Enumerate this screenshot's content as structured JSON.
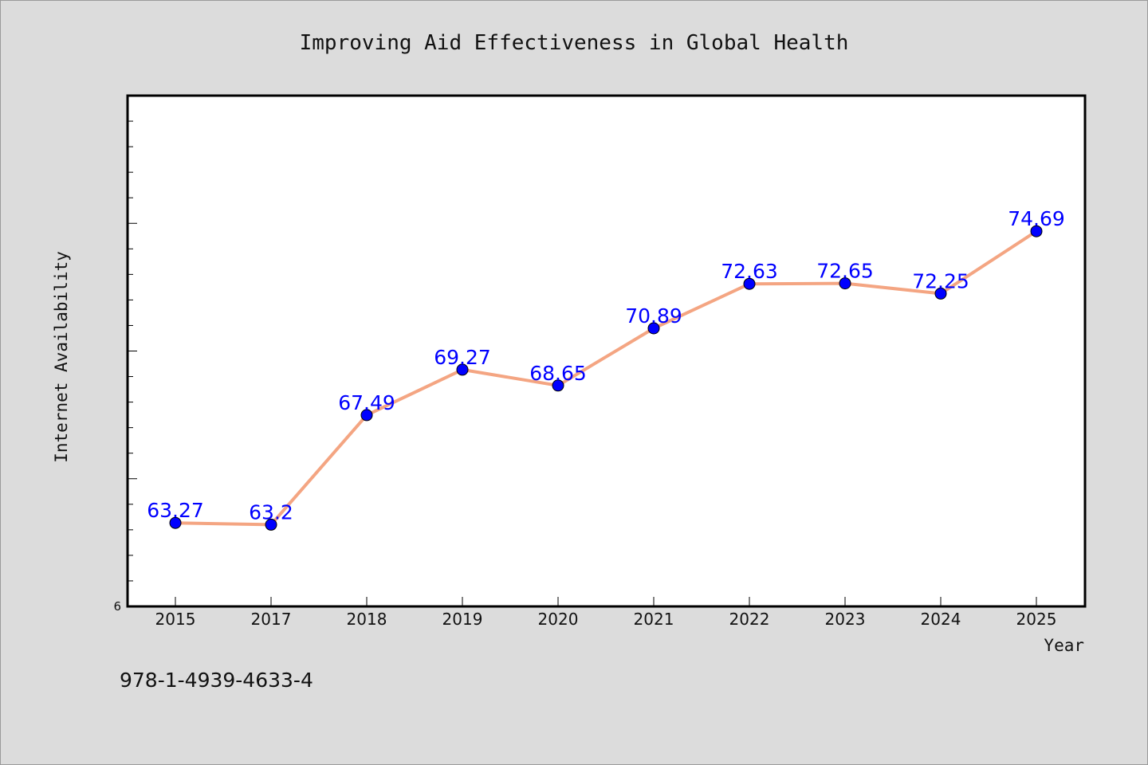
{
  "chart_data": {
    "type": "line",
    "title": "Improving Aid Effectiveness in Global Health",
    "xlabel": "Year",
    "ylabel": "Internet Availability",
    "categories": [
      "2015",
      "2017",
      "2018",
      "2019",
      "2020",
      "2021",
      "2022",
      "2023",
      "2024",
      "2025"
    ],
    "series": [
      {
        "values": [
          63.27,
          63.2,
          67.49,
          69.27,
          68.65,
          70.89,
          72.63,
          72.65,
          72.25,
          74.69
        ],
        "labels": [
          "63.27",
          "63.2",
          "67.49",
          "69.27",
          "68.65",
          "70.89",
          "72.63",
          "72.65",
          "72.25",
          "74.69"
        ],
        "line_color": "#f4a582",
        "marker_color": "#0000ff"
      }
    ],
    "y_tick_labels": [
      "6"
    ],
    "ylim": [
      60,
      80
    ],
    "grid": false,
    "legend": "none",
    "data_label_color": "#0000ff"
  },
  "footnote": "978-1-4939-4633-4"
}
